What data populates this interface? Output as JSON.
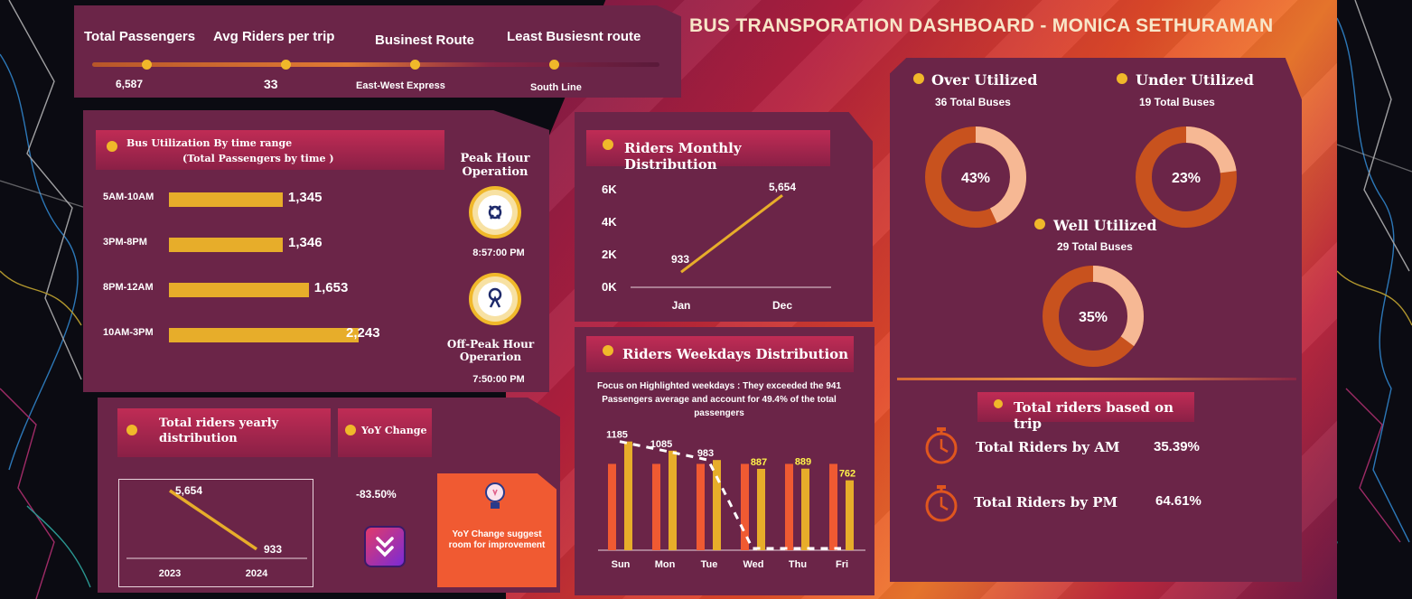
{
  "dashboard": {
    "title": "BUS TRANSPORATION DASHBOARD - MONICA SETHURAMAN"
  },
  "colors": {
    "panel": "#6b2548",
    "accent": "#f0b82a",
    "bar": "#e7ad2a",
    "orange": "#f05a32",
    "donut": "#c8521e",
    "donut_light": "#f6b894"
  },
  "kpis": [
    {
      "label": "Total Passengers",
      "value": "6,587"
    },
    {
      "label": "Avg Riders per trip",
      "value": "33"
    },
    {
      "label": "Businest Route",
      "value": "East-West Express"
    },
    {
      "label": "Least Busiesnt route",
      "value": "South Line"
    }
  ],
  "utilization": {
    "title": "Bus Utilization By time range",
    "subtitle": "(Total Passengers by time )",
    "peak_label": "Peak Hour Operation",
    "peak_time": "8:57:00 PM",
    "offpeak_label": "Off-Peak Hour Operarion",
    "offpeak_time": "7:50:00 PM"
  },
  "monthly": {
    "title": "Riders Monthly Distribution"
  },
  "weekday": {
    "title": "Riders Weekdays Distribution",
    "note": "Focus on Highlighted weekdays : They exceeded  the 941 Passengers average and account for 49.4% of the total passengers"
  },
  "yearly": {
    "title": "Total riders yearly distribution",
    "yoy_title": "YoY Change",
    "yoy_value": "-83.50%",
    "yoy_note": "YoY Change suggest room for improvement"
  },
  "buses": {
    "over": {
      "label": "Over Utilized",
      "sub": "36 Total Buses",
      "pct": "43%",
      "value": 43
    },
    "under": {
      "label": "Under Utilized",
      "sub": "19 Total Buses",
      "pct": "23%",
      "value": 23
    },
    "well": {
      "label": "Well Utilized",
      "sub": "29 Total Buses",
      "pct": "35%",
      "value": 35
    }
  },
  "trips": {
    "title": "Total riders based on trip",
    "am_label": "Total Riders by AM",
    "am_value": "35.39%",
    "pm_label": "Total Riders by PM",
    "pm_value": "64.61%"
  },
  "chart_data": [
    {
      "type": "bar",
      "title": "Bus Utilization By time range",
      "categories": [
        "5AM-10AM",
        "3PM-8PM",
        "8PM-12AM",
        "10AM-3PM"
      ],
      "values": [
        1345,
        1346,
        1653,
        2243
      ],
      "value_labels": [
        "1,345",
        "1,346",
        "1,653",
        "2,243"
      ]
    },
    {
      "type": "line",
      "title": "Riders Monthly Distribution",
      "categories": [
        "Jan",
        "Dec"
      ],
      "values": [
        933,
        5654
      ],
      "value_labels": [
        "933",
        "5,654"
      ],
      "yticks": [
        "0K",
        "2K",
        "4K",
        "6K"
      ],
      "ylim": [
        0,
        6000
      ]
    },
    {
      "type": "bar",
      "title": "Riders Weekdays Distribution",
      "categories": [
        "Sun",
        "Mon",
        "Tue",
        "Wed",
        "Thu",
        "Fri"
      ],
      "series": [
        {
          "values": [
            941,
            941,
            941,
            941,
            941,
            941
          ]
        },
        {
          "values": [
            1185,
            1085,
            983,
            887,
            889,
            762
          ]
        },
        {
          "values": [
            1185,
            1085,
            983,
            0,
            0,
            0
          ]
        }
      ],
      "value_labels": [
        "1185",
        "1085",
        "983",
        "887",
        "889",
        "762"
      ],
      "ylim": [
        0,
        1300
      ]
    },
    {
      "type": "line",
      "title": "Total riders yearly distribution",
      "categories": [
        "2023",
        "2024"
      ],
      "values": [
        5654,
        933
      ],
      "value_labels": [
        "5,654",
        "933"
      ]
    },
    {
      "type": "pie",
      "title": "Over Utilized",
      "values": [
        43,
        57
      ]
    },
    {
      "type": "pie",
      "title": "Under Utilized",
      "values": [
        23,
        77
      ]
    },
    {
      "type": "pie",
      "title": "Well Utilized",
      "values": [
        35,
        65
      ]
    }
  ]
}
